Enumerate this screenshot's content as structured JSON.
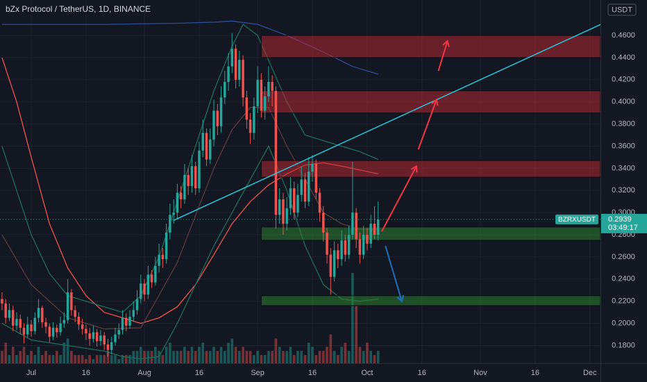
{
  "chart_data": {
    "type": "candlestick",
    "title": "bZx Protocol / TetherUS, 1D, BINANCE",
    "currency": "USDT",
    "symbol": "BZRXUSDT",
    "last_price": 0.2939,
    "countdown": "03:49:17",
    "up_color": "#26a69a",
    "down_color": "#ef5350",
    "grid": true,
    "xlim": [
      -8.56,
      155.9
    ],
    "ylim": [
      0.164,
      0.492
    ],
    "xticks": [
      {
        "value": 0,
        "label": "Jul"
      },
      {
        "value": 15,
        "label": "16"
      },
      {
        "value": 31,
        "label": "Aug"
      },
      {
        "value": 46,
        "label": "16"
      },
      {
        "value": 62,
        "label": "Sep"
      },
      {
        "value": 77,
        "label": "16"
      },
      {
        "value": 92,
        "label": "Oct"
      },
      {
        "value": 107,
        "label": "16"
      },
      {
        "value": 123,
        "label": "Nov"
      },
      {
        "value": 138,
        "label": "16"
      },
      {
        "value": 153,
        "label": "Dec"
      }
    ],
    "yticks": [
      {
        "value": 0.18,
        "label": "0.1800"
      },
      {
        "value": 0.2,
        "label": "0.2000"
      },
      {
        "value": 0.22,
        "label": "0.2200"
      },
      {
        "value": 0.24,
        "label": "0.2400"
      },
      {
        "value": 0.26,
        "label": "0.2600"
      },
      {
        "value": 0.28,
        "label": "0.2800"
      },
      {
        "value": 0.3,
        "label": "0.3000"
      },
      {
        "value": 0.32,
        "label": "0.3200"
      },
      {
        "value": 0.34,
        "label": "0.3400"
      },
      {
        "value": 0.36,
        "label": "0.3600"
      },
      {
        "value": 0.38,
        "label": "0.3800"
      },
      {
        "value": 0.4,
        "label": "0.4000"
      },
      {
        "value": 0.42,
        "label": "0.4200"
      },
      {
        "value": 0.44,
        "label": "0.4400"
      },
      {
        "value": 0.46,
        "label": "0.4600"
      }
    ],
    "x": [
      -8,
      -7,
      -6,
      -5,
      -4,
      -3,
      -2,
      -1,
      0,
      1,
      2,
      3,
      4,
      5,
      6,
      7,
      8,
      9,
      10,
      11,
      12,
      13,
      14,
      15,
      16,
      17,
      18,
      19,
      20,
      21,
      22,
      23,
      24,
      25,
      26,
      27,
      28,
      29,
      30,
      31,
      32,
      33,
      34,
      35,
      36,
      37,
      38,
      39,
      40,
      41,
      42,
      43,
      44,
      45,
      46,
      47,
      48,
      49,
      50,
      51,
      52,
      53,
      54,
      55,
      56,
      57,
      58,
      59,
      60,
      61,
      62,
      63,
      64,
      65,
      66,
      67,
      68,
      69,
      70,
      71,
      72,
      73,
      74,
      75,
      76,
      77,
      78,
      79,
      80,
      81,
      82,
      83,
      84,
      85,
      86,
      87,
      88,
      89,
      90,
      91,
      92,
      93,
      94,
      95
    ],
    "open": [
      0.222,
      0.218,
      0.205,
      0.212,
      0.198,
      0.204,
      0.196,
      0.19,
      0.199,
      0.193,
      0.205,
      0.214,
      0.201,
      0.197,
      0.188,
      0.196,
      0.192,
      0.2,
      0.203,
      0.228,
      0.212,
      0.206,
      0.199,
      0.195,
      0.191,
      0.186,
      0.192,
      0.184,
      0.189,
      0.181,
      0.176,
      0.183,
      0.19,
      0.194,
      0.205,
      0.198,
      0.206,
      0.212,
      0.222,
      0.236,
      0.226,
      0.244,
      0.237,
      0.252,
      0.262,
      0.258,
      0.282,
      0.298,
      0.3,
      0.318,
      0.312,
      0.334,
      0.324,
      0.342,
      0.322,
      0.356,
      0.372,
      0.348,
      0.366,
      0.392,
      0.378,
      0.404,
      0.418,
      0.432,
      0.448,
      0.42,
      0.438,
      0.404,
      0.384,
      0.372,
      0.396,
      0.42,
      0.392,
      0.405,
      0.418,
      0.41,
      0.298,
      0.312,
      0.29,
      0.304,
      0.322,
      0.3,
      0.316,
      0.33,
      0.31,
      0.337,
      0.344,
      0.318,
      0.3,
      0.282,
      0.262,
      0.242,
      0.266,
      0.258,
      0.275,
      0.262,
      0.28,
      0.3,
      0.276,
      0.262,
      0.28,
      0.272,
      0.29,
      0.28
    ],
    "high": [
      0.228,
      0.222,
      0.218,
      0.216,
      0.21,
      0.208,
      0.2,
      0.206,
      0.203,
      0.21,
      0.222,
      0.216,
      0.205,
      0.2,
      0.201,
      0.199,
      0.206,
      0.21,
      0.24,
      0.231,
      0.216,
      0.21,
      0.204,
      0.199,
      0.196,
      0.198,
      0.195,
      0.194,
      0.192,
      0.186,
      0.188,
      0.196,
      0.2,
      0.212,
      0.209,
      0.212,
      0.22,
      0.23,
      0.244,
      0.24,
      0.252,
      0.248,
      0.26,
      0.272,
      0.268,
      0.29,
      0.308,
      0.312,
      0.326,
      0.324,
      0.344,
      0.34,
      0.352,
      0.346,
      0.364,
      0.384,
      0.376,
      0.376,
      0.402,
      0.398,
      0.414,
      0.428,
      0.444,
      0.462,
      0.452,
      0.446,
      0.442,
      0.41,
      0.39,
      0.404,
      0.432,
      0.426,
      0.414,
      0.432,
      0.424,
      0.414,
      0.322,
      0.318,
      0.314,
      0.332,
      0.328,
      0.326,
      0.342,
      0.336,
      0.35,
      0.352,
      0.348,
      0.322,
      0.306,
      0.286,
      0.268,
      0.274,
      0.272,
      0.284,
      0.28,
      0.288,
      0.346,
      0.304,
      0.282,
      0.288,
      0.286,
      0.298,
      0.306,
      0.31
    ],
    "low": [
      0.212,
      0.2,
      0.202,
      0.193,
      0.194,
      0.19,
      0.182,
      0.187,
      0.188,
      0.19,
      0.201,
      0.196,
      0.191,
      0.183,
      0.185,
      0.187,
      0.189,
      0.196,
      0.2,
      0.207,
      0.201,
      0.194,
      0.19,
      0.185,
      0.18,
      0.183,
      0.179,
      0.18,
      0.176,
      0.17,
      0.172,
      0.18,
      0.186,
      0.19,
      0.193,
      0.195,
      0.202,
      0.208,
      0.218,
      0.22,
      0.222,
      0.232,
      0.234,
      0.246,
      0.25,
      0.254,
      0.276,
      0.29,
      0.295,
      0.304,
      0.308,
      0.316,
      0.318,
      0.316,
      0.318,
      0.35,
      0.342,
      0.344,
      0.36,
      0.37,
      0.372,
      0.398,
      0.41,
      0.426,
      0.412,
      0.414,
      0.396,
      0.376,
      0.362,
      0.366,
      0.39,
      0.386,
      0.384,
      0.4,
      0.396,
      0.286,
      0.29,
      0.28,
      0.284,
      0.298,
      0.294,
      0.296,
      0.31,
      0.304,
      0.306,
      0.328,
      0.312,
      0.292,
      0.274,
      0.254,
      0.226,
      0.238,
      0.25,
      0.252,
      0.256,
      0.258,
      0.276,
      0.268,
      0.254,
      0.258,
      0.266,
      0.268,
      0.276,
      0.275
    ],
    "close": [
      0.218,
      0.205,
      0.212,
      0.198,
      0.204,
      0.196,
      0.19,
      0.199,
      0.193,
      0.205,
      0.214,
      0.201,
      0.197,
      0.188,
      0.196,
      0.192,
      0.2,
      0.203,
      0.228,
      0.212,
      0.206,
      0.199,
      0.195,
      0.191,
      0.186,
      0.192,
      0.184,
      0.189,
      0.181,
      0.176,
      0.183,
      0.19,
      0.194,
      0.205,
      0.198,
      0.206,
      0.212,
      0.222,
      0.236,
      0.226,
      0.244,
      0.237,
      0.252,
      0.262,
      0.258,
      0.282,
      0.298,
      0.3,
      0.318,
      0.312,
      0.334,
      0.324,
      0.342,
      0.322,
      0.356,
      0.372,
      0.348,
      0.366,
      0.392,
      0.378,
      0.404,
      0.418,
      0.432,
      0.448,
      0.42,
      0.438,
      0.404,
      0.384,
      0.372,
      0.396,
      0.42,
      0.392,
      0.405,
      0.418,
      0.41,
      0.298,
      0.312,
      0.29,
      0.304,
      0.322,
      0.3,
      0.316,
      0.33,
      0.31,
      0.337,
      0.344,
      0.318,
      0.3,
      0.282,
      0.262,
      0.242,
      0.266,
      0.258,
      0.275,
      0.262,
      0.28,
      0.3,
      0.276,
      0.262,
      0.28,
      0.272,
      0.29,
      0.28,
      0.2939
    ],
    "volume": [
      3,
      5,
      2,
      4,
      2,
      3,
      4,
      2,
      3,
      2,
      4,
      2,
      3,
      2,
      2,
      3,
      2,
      5,
      6,
      3,
      2,
      2,
      2,
      1,
      2,
      1,
      2,
      2,
      2,
      3,
      2,
      2,
      1,
      2,
      2,
      2,
      3,
      3,
      4,
      3,
      3,
      3,
      4,
      3,
      2,
      4,
      5,
      3,
      3,
      3,
      4,
      3,
      4,
      3,
      4,
      5,
      3,
      3,
      4,
      3,
      4,
      3,
      5,
      6,
      4,
      3,
      4,
      3,
      3,
      2,
      3,
      2,
      2,
      3,
      3,
      6,
      4,
      3,
      3,
      4,
      2,
      3,
      3,
      2,
      5,
      4,
      2,
      3,
      3,
      4,
      7,
      3,
      2,
      4,
      5,
      3,
      22,
      14,
      4,
      3,
      5,
      3,
      2,
      3
    ],
    "indicators": [
      {
        "color": "#f05350",
        "x": [
          -8,
          -4,
          0,
          5,
          10,
          15,
          20,
          25,
          30,
          35,
          40,
          45,
          50,
          55,
          60,
          65,
          70,
          75,
          80,
          85,
          95
        ],
        "values": [
          0.44,
          0.4,
          0.35,
          0.29,
          0.25,
          0.225,
          0.21,
          0.205,
          0.2,
          0.205,
          0.215,
          0.235,
          0.262,
          0.29,
          0.31,
          0.325,
          0.335,
          0.343,
          0.345,
          0.342,
          0.335
        ]
      },
      {
        "color": "#2c4f9a",
        "x": [
          -8,
          20,
          40,
          50,
          55,
          62,
          70,
          80,
          88,
          95
        ],
        "values": [
          0.47,
          0.47,
          0.471,
          0.472,
          0.473,
          0.47,
          0.46,
          0.445,
          0.432,
          0.425
        ]
      },
      {
        "color": "#1f6e5c",
        "x": [
          -8,
          -4,
          0,
          5,
          10,
          15,
          20,
          25,
          30,
          35,
          40,
          45,
          50,
          55,
          58,
          62,
          66,
          70,
          75,
          80,
          85,
          90,
          95
        ],
        "values": [
          0.36,
          0.32,
          0.28,
          0.245,
          0.225,
          0.22,
          0.215,
          0.21,
          0.225,
          0.26,
          0.31,
          0.36,
          0.41,
          0.45,
          0.47,
          0.46,
          0.43,
          0.4,
          0.37,
          0.365,
          0.36,
          0.355,
          0.348
        ]
      },
      {
        "color": "#1f6e5c",
        "x": [
          -8,
          0,
          10,
          20,
          25,
          30,
          35,
          40,
          45,
          50,
          55,
          60,
          65,
          70,
          75,
          80,
          85,
          90,
          95
        ],
        "values": [
          0.2,
          0.185,
          0.18,
          0.175,
          0.17,
          0.168,
          0.17,
          0.2,
          0.235,
          0.27,
          0.3,
          0.33,
          0.36,
          0.32,
          0.27,
          0.235,
          0.222,
          0.22,
          0.222
        ]
      },
      {
        "color": "#5d3b3b",
        "x": [
          -8,
          0,
          10,
          20,
          30,
          40,
          50,
          55,
          60,
          65,
          70,
          75,
          80,
          85,
          90,
          95
        ],
        "values": [
          0.28,
          0.235,
          0.205,
          0.195,
          0.196,
          0.255,
          0.34,
          0.375,
          0.395,
          0.395,
          0.36,
          0.33,
          0.3,
          0.29,
          0.285,
          0.285
        ]
      }
    ],
    "zones": [
      {
        "start": 63,
        "low": 0.44,
        "high": 0.46,
        "color": "#b22833"
      },
      {
        "start": 63,
        "low": 0.39,
        "high": 0.41,
        "color": "#b22833"
      },
      {
        "start": 63,
        "low": 0.332,
        "high": 0.347,
        "color": "#b22833"
      },
      {
        "start": 63,
        "low": 0.275,
        "high": 0.287,
        "color": "#2e7d32"
      },
      {
        "start": 63,
        "low": 0.216,
        "high": 0.225,
        "color": "#2e7d32"
      }
    ],
    "trend_line": {
      "color": "#26c6da",
      "x": [
        39,
        156
      ],
      "values": [
        0.293,
        0.47
      ]
    },
    "arrows": [
      {
        "color": "#f23645",
        "x": [
          96,
          105.5
        ],
        "values": [
          0.283,
          0.342
        ]
      },
      {
        "color": "#f23645",
        "x": [
          106,
          111
        ],
        "values": [
          0.357,
          0.402
        ]
      },
      {
        "color": "#f23645",
        "x": [
          111.5,
          114
        ],
        "values": [
          0.428,
          0.455
        ]
      },
      {
        "color": "#1e6fbf",
        "x": [
          97,
          101.5
        ],
        "values": [
          0.27,
          0.22
        ]
      }
    ]
  }
}
